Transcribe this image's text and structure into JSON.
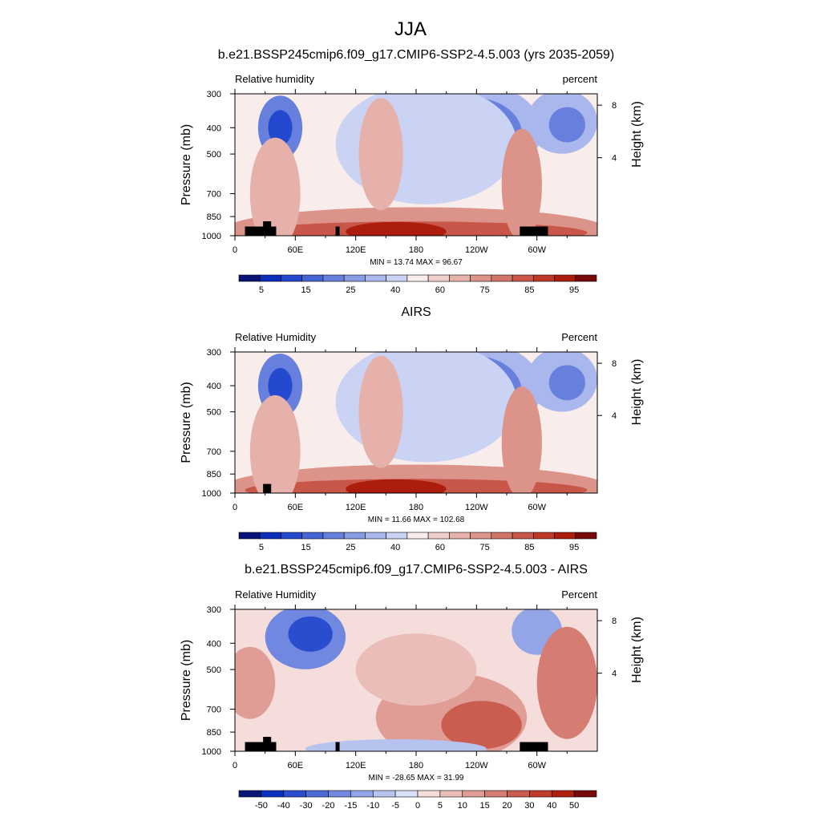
{
  "figure": {
    "title": "JJA"
  },
  "chart_data": [
    {
      "type": "heatmap",
      "title": "b.e21.BSSP245cmip6.f09_g17.CMIP6-SSP2-4.5.003 (yrs 2035-2059)",
      "left_label": "Relative humidity",
      "right_label": "percent",
      "ylabel": "Pressure (mb)",
      "y2label": "Height (km)",
      "xticks": [
        "0",
        "60E",
        "120E",
        "180",
        "120W",
        "60W"
      ],
      "yticks": [
        "300",
        "400",
        "500",
        "700",
        "850",
        "1000"
      ],
      "y2ticks": [
        "8",
        "4"
      ],
      "stats": "MIN =  13.74  MAX =  96.67",
      "colorbar_labels": [
        "5",
        "15",
        "25",
        "40",
        "60",
        "75",
        "85",
        "95"
      ],
      "levels": [
        5,
        10,
        15,
        20,
        25,
        30,
        40,
        50,
        60,
        65,
        70,
        75,
        80,
        85,
        90,
        95
      ],
      "min": 13.74,
      "max": 96.67,
      "colors": {
        "dry": "#0b33c8",
        "mid": "#ffffff",
        "moist": "#b7210e"
      }
    },
    {
      "type": "heatmap",
      "title": "AIRS",
      "left_label": "Relative Humidity",
      "right_label": "Percent",
      "ylabel": "Pressure (mb)",
      "y2label": "Height (km)",
      "xticks": [
        "0",
        "60E",
        "120E",
        "180",
        "120W",
        "60W"
      ],
      "yticks": [
        "300",
        "400",
        "500",
        "700",
        "850",
        "1000"
      ],
      "y2ticks": [
        "8",
        "4"
      ],
      "stats": "MIN =  11.66  MAX = 102.68",
      "colorbar_labels": [
        "5",
        "15",
        "25",
        "40",
        "60",
        "75",
        "85",
        "95"
      ],
      "levels": [
        5,
        10,
        15,
        20,
        25,
        30,
        40,
        50,
        60,
        65,
        70,
        75,
        80,
        85,
        90,
        95
      ],
      "min": 11.66,
      "max": 102.68,
      "colors": {
        "dry": "#0b33c8",
        "mid": "#ffffff",
        "moist": "#b7210e"
      }
    },
    {
      "type": "heatmap",
      "title": "b.e21.BSSP245cmip6.f09_g17.CMIP6-SSP2-4.5.003 - AIRS",
      "left_label": "Relative Humidity",
      "right_label": "Percent",
      "ylabel": "Pressure (mb)",
      "y2label": "Height (km)",
      "xticks": [
        "0",
        "60E",
        "120E",
        "180",
        "120W",
        "60W"
      ],
      "yticks": [
        "300",
        "400",
        "500",
        "700",
        "850",
        "1000"
      ],
      "y2ticks": [
        "8",
        "4"
      ],
      "stats": "MIN = -28.65  MAX =  31.99",
      "colorbar_labels": [
        "-50",
        "-40",
        "-30",
        "-20",
        "-15",
        "-10",
        "-5",
        "0",
        "5",
        "10",
        "15",
        "20",
        "30",
        "40",
        "50"
      ],
      "levels": [
        -50,
        -40,
        -30,
        -20,
        -15,
        -10,
        -5,
        0,
        5,
        10,
        15,
        20,
        30,
        40,
        50
      ],
      "min": -28.65,
      "max": 31.99,
      "colors": {
        "dry": "#0b33c8",
        "mid": "#ffffff",
        "moist": "#b7210e"
      }
    }
  ]
}
